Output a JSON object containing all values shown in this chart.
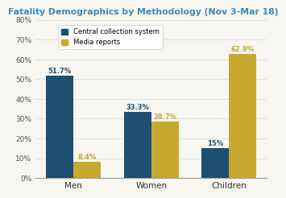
{
  "title": "Fatality Demographics by Methodology (Nov 3-Mar 18)",
  "categories": [
    "Men",
    "Women",
    "Children"
  ],
  "central_values": [
    51.7,
    33.3,
    15.0
  ],
  "media_values": [
    8.4,
    28.7,
    62.9
  ],
  "central_color": "#1c4f72",
  "media_color": "#c9a830",
  "ylim": [
    0,
    80
  ],
  "yticks": [
    0,
    10,
    20,
    30,
    40,
    50,
    60,
    70,
    80
  ],
  "ytick_labels": [
    "0%",
    "10%",
    "20%",
    "30%",
    "40%",
    "50%",
    "60%",
    "70%",
    "80%"
  ],
  "central_labels": [
    "51.7%",
    "33.3%",
    "15%"
  ],
  "media_labels": [
    "8.4%",
    "28.7%",
    "62.9%"
  ],
  "legend_central": "Central collection system",
  "legend_media": "Media reports",
  "title_color": "#3a8abf",
  "background_color": "#f7f6f1",
  "bar_width": 0.35
}
